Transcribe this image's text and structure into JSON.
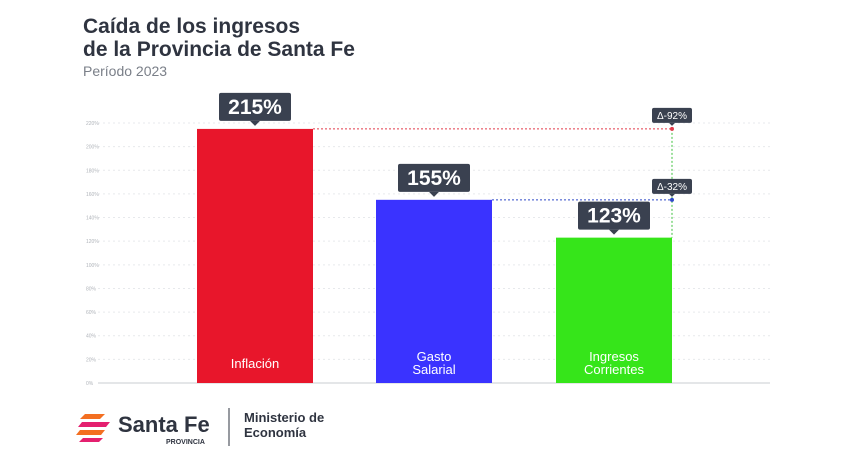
{
  "title_line1": "Caída de los ingresos",
  "title_line2": "de la Provincia de Santa Fe",
  "subtitle": "Período 2023",
  "colors": {
    "inflacion": "#e8162b",
    "gasto": "#3a33ff",
    "ingresos": "#36e51a",
    "label_box": "#3a4150",
    "ref_red": "#e23a4a",
    "ref_blue": "#2e49c8",
    "ref_green": "#3cc23c",
    "logo_orange": "#f36f21",
    "logo_pink": "#e4206f"
  },
  "chart_data": {
    "type": "bar",
    "categories": [
      "Inflación",
      "Gasto Salarial",
      "Ingresos Corrientes"
    ],
    "category_lines": [
      [
        "Inflación"
      ],
      [
        "Gasto",
        "Salarial"
      ],
      [
        "Ingresos",
        "Corrientes"
      ]
    ],
    "values": [
      215,
      155,
      123
    ],
    "value_labels": [
      "215%",
      "155%",
      "123%"
    ],
    "ylim": [
      0,
      220
    ],
    "yticks": [
      0,
      20,
      40,
      60,
      80,
      100,
      120,
      140,
      160,
      180,
      200,
      220
    ],
    "ytick_labels": [
      "0%",
      "20%",
      "40%",
      "60%",
      "80%",
      "100%",
      "120%",
      "140%",
      "160%",
      "180%",
      "200%",
      "220%"
    ],
    "grid": true,
    "annotations": [
      {
        "text": "Δ-92%",
        "from_value": 215,
        "to_value": 123
      },
      {
        "text": "Δ-32%",
        "from_value": 155,
        "to_value": 123
      }
    ]
  },
  "footer": {
    "logo_main": "Santa Fe",
    "logo_sub": "PROVINCIA",
    "ministry_line1": "Ministerio de",
    "ministry_line2": "Economía"
  }
}
